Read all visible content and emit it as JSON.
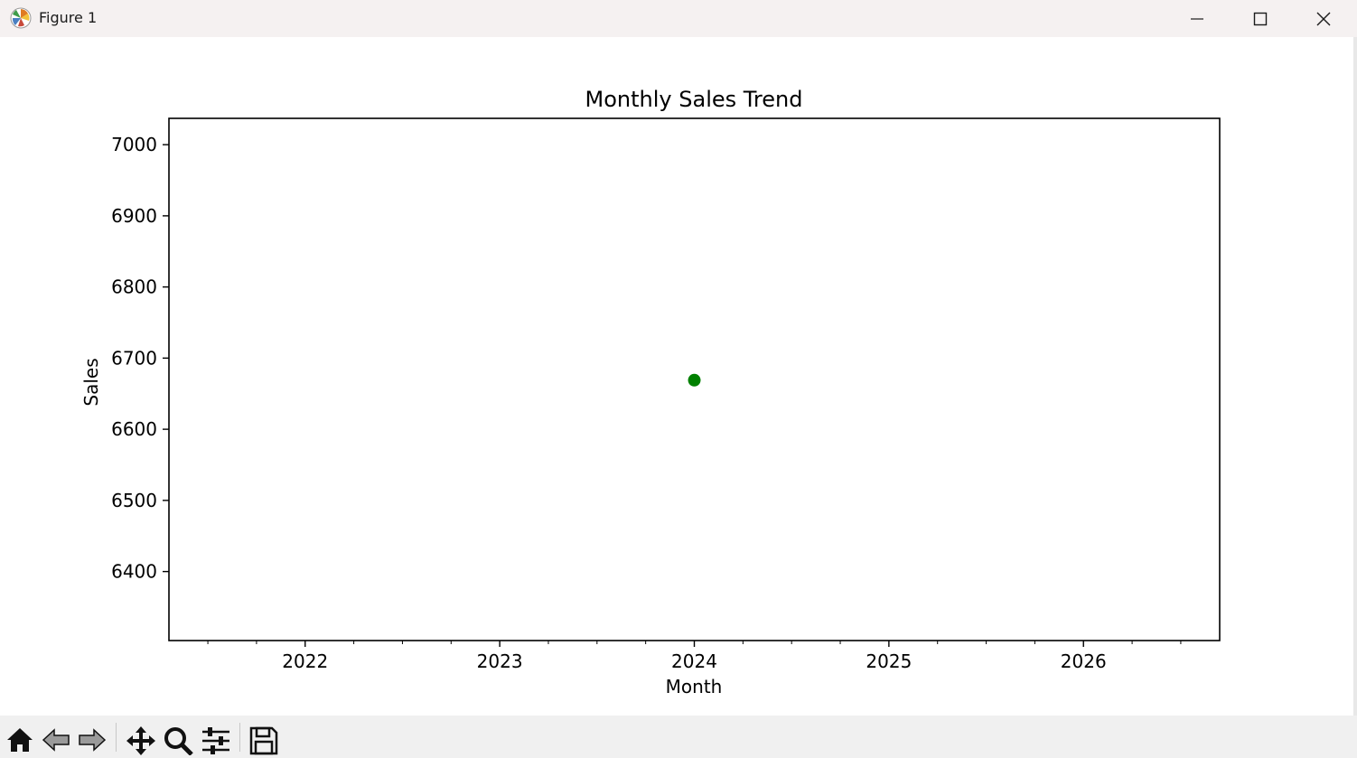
{
  "window": {
    "title": "Figure 1"
  },
  "toolbar": {
    "buttons": [
      "home-icon",
      "back-arrow-icon",
      "forward-arrow-icon",
      "pan-icon",
      "zoom-icon",
      "configure-subplots-icon",
      "save-icon"
    ]
  },
  "chart_data": {
    "type": "scatter",
    "title": "Monthly Sales Trend",
    "xlabel": "Month",
    "ylabel": "Sales",
    "x_tick_labels": [
      "2022",
      "2023",
      "2024",
      "2025",
      "2026"
    ],
    "x_tick_values": [
      2022,
      2023,
      2024,
      2025,
      2026
    ],
    "y_tick_labels": [
      "6400",
      "6500",
      "6600",
      "6700",
      "6800",
      "6900",
      "7000"
    ],
    "y_tick_values": [
      6400,
      6500,
      6600,
      6700,
      6800,
      6900,
      7000
    ],
    "xlim": [
      2021.3,
      2026.7
    ],
    "ylim": [
      6303,
      7037
    ],
    "points": [
      {
        "x": 2024,
        "y": 6669
      }
    ],
    "marker_color": "#008000",
    "grid": false
  }
}
